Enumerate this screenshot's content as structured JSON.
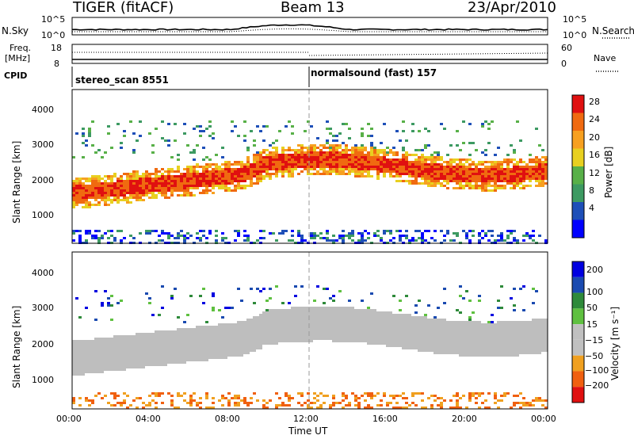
{
  "header": {
    "title": "TIGER (fitACF)",
    "beam": "Beam 13",
    "date": "23/Apr/2010"
  },
  "top_panel": {
    "left_label": "N.Sky",
    "right_label": "N.Search",
    "left_ticks": [
      "10^5",
      "10^0"
    ],
    "right_ticks": [
      "10^5",
      "10^0"
    ]
  },
  "freq_panel": {
    "left_label_1": "Freq.",
    "left_label_2": "[MHz]",
    "right_label": "Nave",
    "left_ticks": [
      "18",
      "8"
    ],
    "right_ticks": [
      "60",
      "0"
    ]
  },
  "cpid_panel": {
    "label": "CPID",
    "programs": [
      {
        "name": "stereo_scan 8551"
      },
      {
        "name": "normalsound (fast) 157"
      }
    ]
  },
  "chart_data": [
    {
      "type": "heatmap",
      "ylabel": "Slant Range [km]",
      "yticks": [
        "1000",
        "2000",
        "3000",
        "4000"
      ],
      "colorbar_label": "Power [dB]",
      "colorbar_ticks": [
        "4",
        "8",
        "12",
        "16",
        "20",
        "24",
        "28"
      ],
      "colors": [
        "#0000ff",
        "#1e4fb8",
        "#3d9a62",
        "#58b048",
        "#e8d020",
        "#f7a020",
        "#f06a10",
        "#e01010"
      ]
    },
    {
      "type": "heatmap",
      "ylabel": "Slant Range [km]",
      "yticks": [
        "1000",
        "2000",
        "3000",
        "4000"
      ],
      "colorbar_label": "Velocity [m s⁻¹]",
      "colorbar_ticks": [
        "200",
        "100",
        "50",
        "15",
        "−15",
        "−50",
        "−100",
        "−200"
      ],
      "colors": [
        "#0000e0",
        "#1a4ab0",
        "#2e8a3a",
        "#5fc040",
        "#c0c0c0",
        "#c0c0c0",
        "#f0a020",
        "#f06010",
        "#e01010"
      ],
      "ground_scatter_color": "#bebebe"
    }
  ],
  "x_axis": {
    "ticks": [
      "00:00",
      "04:00",
      "08:00",
      "12:00",
      "16:00",
      "20:00",
      "00:00"
    ],
    "label": "Time UT"
  }
}
